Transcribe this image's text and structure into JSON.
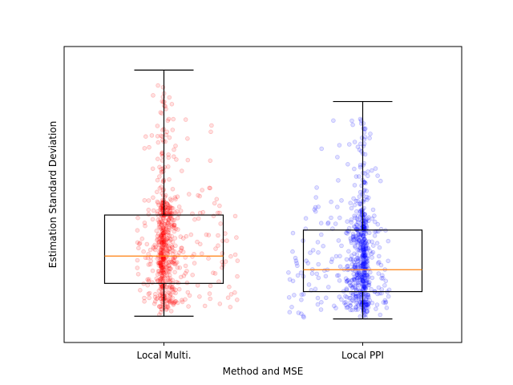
{
  "chart_data": {
    "type": "box",
    "title": "",
    "xlabel": "Method and MSE",
    "ylabel": "Estimation Standard Deviation",
    "ylim": [
      0,
      100
    ],
    "y_ticks_shown": false,
    "grid": false,
    "categories": [
      "Local Multi.",
      "Local PPI"
    ],
    "series": [
      {
        "category": "Local Multi.",
        "point_color": "#ff0000",
        "whisker_low": 5.5,
        "q1": 17.5,
        "median": 27.5,
        "q3": 42.5,
        "whisker_high": 95.5,
        "n_points": 700,
        "point_max": 90
      },
      {
        "category": "Local PPI",
        "point_color": "#0000ff",
        "whisker_low": 4.5,
        "q1": 14.5,
        "median": 22.5,
        "q3": 37.0,
        "whisker_high": 84.0,
        "n_points": 700,
        "point_max": 78
      }
    ],
    "median_color": "#ff7f0e",
    "box_color": "#000000"
  }
}
